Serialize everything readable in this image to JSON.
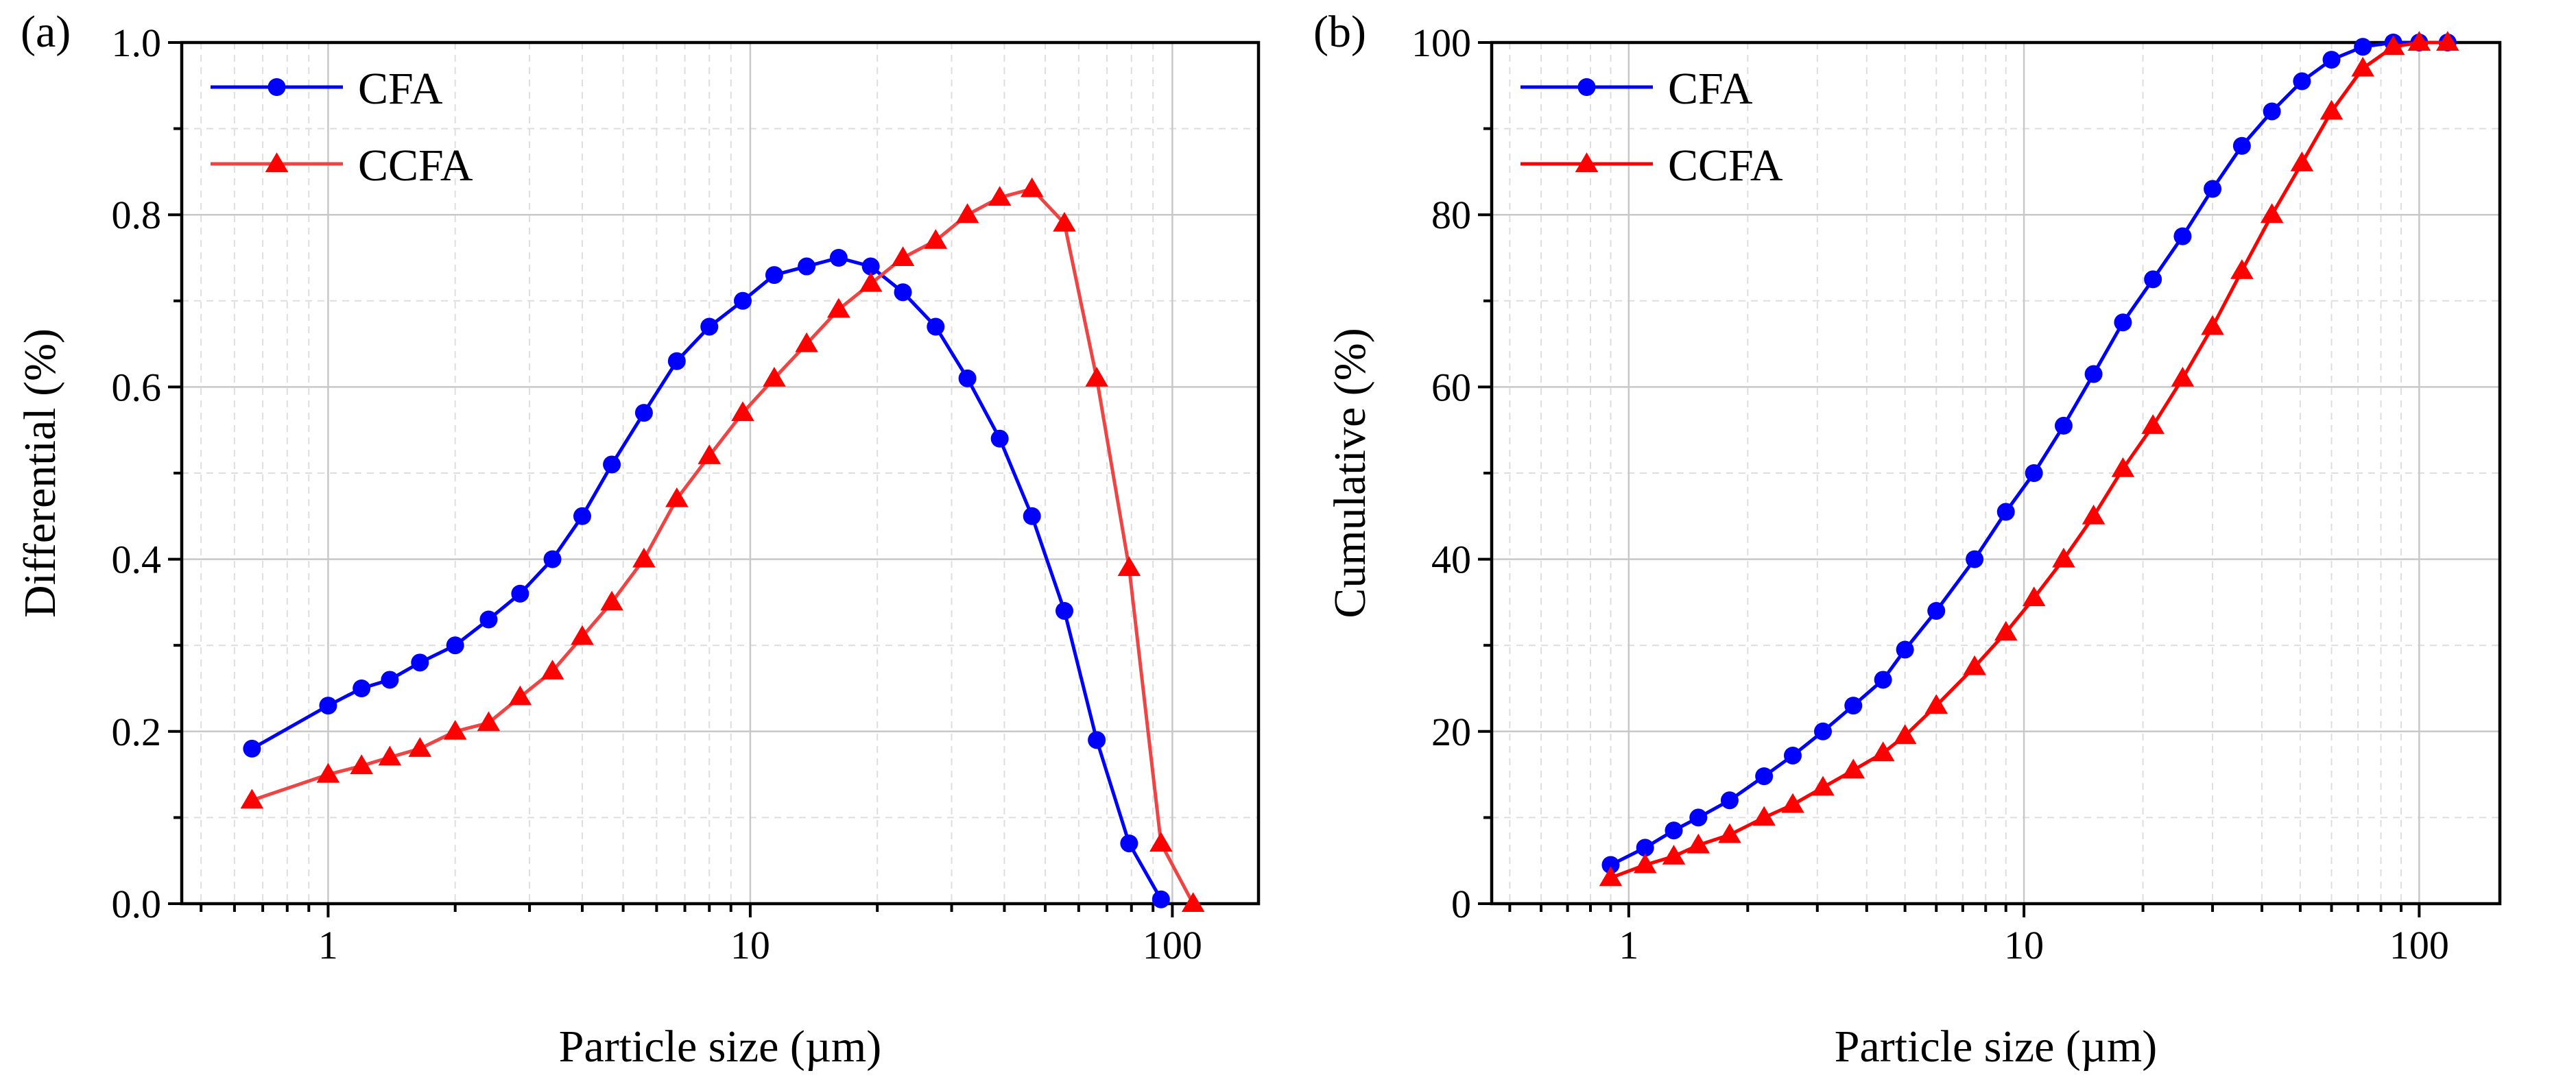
{
  "chart_data": [
    {
      "type": "line",
      "panel_label": "(a)",
      "xlabel": "Particle size (µm)",
      "ylabel": "Differential (%)",
      "x_scale": "log",
      "xlim": [
        0.45,
        160
      ],
      "ylim": [
        0,
        1.0
      ],
      "x_ticks": [
        1,
        10,
        100
      ],
      "x_tick_labels": [
        "1",
        "10",
        "100"
      ],
      "y_ticks": [
        0,
        0.2,
        0.4,
        0.6,
        0.8,
        1.0
      ],
      "y_tick_labels": [
        "0.0",
        "0.2",
        "0.4",
        "0.6",
        "0.8",
        "1.0"
      ],
      "grid": true,
      "legend_position": "top-left",
      "series": [
        {
          "name": "CFA",
          "color": "#0000ff",
          "marker": "circle",
          "x": [
            0.66,
            1.0,
            1.2,
            1.4,
            1.65,
            2.0,
            2.4,
            2.85,
            3.4,
            4.0,
            4.7,
            5.6,
            6.7,
            8.0,
            9.6,
            11.4,
            13.6,
            16.2,
            19.3,
            23.0,
            27.5,
            32.7,
            39.0,
            46.5,
            55.5,
            66.2,
            79.0,
            94.0
          ],
          "y": [
            0.18,
            0.23,
            0.25,
            0.26,
            0.28,
            0.3,
            0.33,
            0.36,
            0.4,
            0.45,
            0.51,
            0.57,
            0.63,
            0.67,
            0.7,
            0.73,
            0.74,
            0.75,
            0.74,
            0.71,
            0.67,
            0.61,
            0.54,
            0.45,
            0.34,
            0.19,
            0.07,
            0.005
          ]
        },
        {
          "name": "CCFA",
          "color": "#ff0000",
          "line_color": "#ee4444",
          "marker": "triangle",
          "x": [
            0.66,
            1.0,
            1.2,
            1.4,
            1.65,
            2.0,
            2.4,
            2.85,
            3.4,
            4.0,
            4.7,
            5.6,
            6.7,
            8.0,
            9.6,
            11.4,
            13.6,
            16.2,
            19.3,
            23.0,
            27.5,
            32.7,
            39.0,
            46.5,
            55.5,
            66.2,
            79.0,
            94.0,
            112.0
          ],
          "y": [
            0.12,
            0.15,
            0.16,
            0.17,
            0.18,
            0.2,
            0.21,
            0.24,
            0.27,
            0.31,
            0.35,
            0.4,
            0.47,
            0.52,
            0.57,
            0.61,
            0.65,
            0.69,
            0.72,
            0.75,
            0.77,
            0.8,
            0.82,
            0.83,
            0.79,
            0.61,
            0.39,
            0.07,
            0.0
          ]
        }
      ]
    },
    {
      "type": "line",
      "panel_label": "(b)",
      "xlabel": "Particle size (µm)",
      "ylabel": "Cumulative (%)",
      "x_scale": "log",
      "xlim": [
        0.45,
        160
      ],
      "ylim": [
        0,
        100
      ],
      "x_ticks": [
        1,
        10,
        100
      ],
      "x_tick_labels": [
        "1",
        "10",
        "100"
      ],
      "y_ticks": [
        0,
        20,
        40,
        60,
        80,
        100
      ],
      "y_tick_labels": [
        "0",
        "20",
        "40",
        "60",
        "80",
        "100"
      ],
      "grid": true,
      "legend_position": "top-left",
      "series": [
        {
          "name": "CFA",
          "color": "#0000ff",
          "marker": "circle",
          "x": [
            0.9,
            1.1,
            1.3,
            1.5,
            1.8,
            2.2,
            2.6,
            3.1,
            3.7,
            4.4,
            5.0,
            6.0,
            7.5,
            9.0,
            10.6,
            12.6,
            15.0,
            17.8,
            21.2,
            25.2,
            30.0,
            35.6,
            42.4,
            50.5,
            60.0,
            72.0,
            86.0,
            100.0,
            118.0
          ],
          "y": [
            4.5,
            6.5,
            8.5,
            10.0,
            12.0,
            14.8,
            17.2,
            20.0,
            23.0,
            26.0,
            29.5,
            34.0,
            40.0,
            45.5,
            50.0,
            55.5,
            61.5,
            67.5,
            72.5,
            77.5,
            83.0,
            88.0,
            92.0,
            95.5,
            98.0,
            99.5,
            100.0,
            100.0,
            100.0
          ]
        },
        {
          "name": "CCFA",
          "color": "#ff0000",
          "marker": "triangle",
          "x": [
            0.9,
            1.1,
            1.3,
            1.5,
            1.8,
            2.2,
            2.6,
            3.1,
            3.7,
            4.4,
            5.0,
            6.0,
            7.5,
            9.0,
            10.6,
            12.6,
            15.0,
            17.8,
            21.2,
            25.2,
            30.0,
            35.6,
            42.4,
            50.5,
            60.0,
            72.0,
            86.0,
            100.0,
            118.0
          ],
          "y": [
            3.0,
            4.5,
            5.5,
            6.8,
            8.0,
            10.0,
            11.5,
            13.5,
            15.5,
            17.5,
            19.5,
            23.0,
            27.5,
            31.5,
            35.5,
            40.0,
            45.0,
            50.5,
            55.5,
            61.0,
            67.0,
            73.5,
            80.0,
            86.0,
            92.0,
            97.0,
            99.5,
            100.0,
            100.0
          ]
        }
      ]
    }
  ]
}
